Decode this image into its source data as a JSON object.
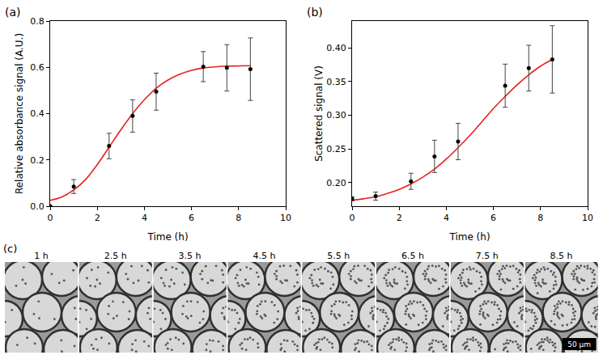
{
  "chart_data": [
    {
      "type": "scatter",
      "panel_label": "(a)",
      "x_label": "Time (h)",
      "y_label": "Relative absorbance signal (A.U.)",
      "xlim": [
        0,
        10
      ],
      "xticks": [
        0,
        2,
        4,
        6,
        8,
        10
      ],
      "ylim": [
        0,
        0.8
      ],
      "yticks": [
        {
          "value": 0,
          "label": "0.0"
        },
        0.2,
        0.4,
        0.6,
        0.8
      ],
      "grid": false,
      "series": [
        {
          "type": "line",
          "color": "#e8201f",
          "line_style": "solid",
          "x": [
            0,
            0.5,
            1,
            1.5,
            2,
            2.5,
            3,
            3.5,
            4,
            4.5,
            5,
            5.5,
            6,
            6.5,
            7,
            7.5,
            8,
            8.5
          ],
          "values": [
            0.025,
            0.04,
            0.07,
            0.115,
            0.18,
            0.255,
            0.33,
            0.4,
            0.46,
            0.51,
            0.545,
            0.57,
            0.587,
            0.597,
            0.602,
            0.605,
            0.606,
            0.607
          ]
        },
        {
          "type": "scatter",
          "color": "#000000",
          "marker": "circle",
          "x": [
            0,
            1,
            2.5,
            3.5,
            4.5,
            6.5,
            7.5,
            8.5
          ],
          "values": [
            0,
            0.085,
            0.26,
            0.39,
            0.495,
            0.603,
            0.598,
            0.592
          ],
          "errors": [
            0,
            0.03,
            0.055,
            0.07,
            0.08,
            0.065,
            0.1,
            0.135
          ]
        }
      ]
    },
    {
      "type": "scatter",
      "panel_label": "(b)",
      "x_label": "Time (h)",
      "y_label": "Scattered signal (V)",
      "xlim": [
        0,
        10
      ],
      "xticks": [
        0,
        2,
        4,
        6,
        8,
        10
      ],
      "ylim": [
        0.165,
        0.44
      ],
      "yticks": [
        {
          "value": 0.2,
          "label": "0.20"
        },
        0.25,
        {
          "value": 0.3,
          "label": "0.30"
        },
        0.35,
        {
          "value": 0.4,
          "label": "0.40"
        }
      ],
      "grid": false,
      "series": [
        {
          "type": "line",
          "color": "#e8201f",
          "line_style": "solid",
          "x": [
            0,
            0.5,
            1,
            1.5,
            2,
            2.5,
            3,
            3.5,
            4,
            4.5,
            5,
            5.5,
            6,
            6.5,
            7,
            7.5,
            8,
            8.5
          ],
          "values": [
            0.174,
            0.176,
            0.179,
            0.184,
            0.19,
            0.198,
            0.208,
            0.22,
            0.235,
            0.252,
            0.27,
            0.29,
            0.31,
            0.328,
            0.345,
            0.36,
            0.373,
            0.383
          ]
        },
        {
          "type": "scatter",
          "color": "#000000",
          "marker": "circle",
          "x": [
            0,
            1,
            2.5,
            3.5,
            4.5,
            6.5,
            7.5,
            8.5
          ],
          "values": [
            0.176,
            0.18,
            0.202,
            0.239,
            0.261,
            0.344,
            0.37,
            0.383
          ],
          "errors": [
            0.003,
            0.006,
            0.012,
            0.024,
            0.027,
            0.032,
            0.034,
            0.05
          ]
        }
      ]
    }
  ],
  "images": {
    "label": "(c)",
    "times": [
      "1 h",
      "2.5 h",
      "3.5 h",
      "4.5 h",
      "5.5 h",
      "6.5 h",
      "7.5 h",
      "8.5 h"
    ],
    "scale_bar": "50 μm"
  }
}
